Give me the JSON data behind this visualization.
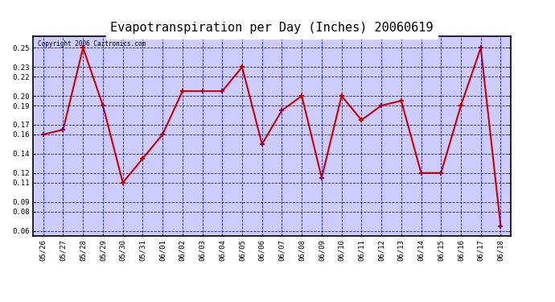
{
  "title": "Evapotranspiration per Day (Inches) 20060619",
  "copyright_text": "Copyright 2006 Caztronics.com",
  "dates": [
    "05/26",
    "05/27",
    "05/28",
    "05/29",
    "05/30",
    "05/31",
    "06/01",
    "06/02",
    "06/03",
    "06/04",
    "06/05",
    "06/06",
    "06/07",
    "06/08",
    "06/09",
    "06/10",
    "06/11",
    "06/12",
    "06/13",
    "06/14",
    "06/15",
    "06/16",
    "06/17",
    "06/18"
  ],
  "values": [
    0.16,
    0.165,
    0.25,
    0.19,
    0.11,
    0.135,
    0.16,
    0.205,
    0.205,
    0.205,
    0.23,
    0.15,
    0.185,
    0.2,
    0.115,
    0.2,
    0.175,
    0.19,
    0.195,
    0.12,
    0.12,
    0.19,
    0.25,
    0.065
  ],
  "line_color": "#CC0000",
  "marker_color": "#CC0000",
  "fig_background": "#FFFFFF",
  "plot_background": "#CCCCFF",
  "grid_color": "#0000CC",
  "title_fontsize": 11,
  "ylim_min": 0.055,
  "ylim_max": 0.262,
  "yticks": [
    0.06,
    0.08,
    0.09,
    0.11,
    0.12,
    0.14,
    0.16,
    0.17,
    0.19,
    0.2,
    0.22,
    0.23,
    0.25
  ]
}
